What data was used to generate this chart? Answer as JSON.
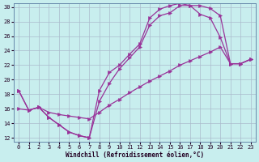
{
  "bg_color": "#c8eeee",
  "grid_color": "#aabbcc",
  "line_color": "#993399",
  "xlabel": "Windchill (Refroidissement éolien,°C)",
  "xlim": [
    -0.5,
    23.5
  ],
  "ylim": [
    11.5,
    30.5
  ],
  "xticks": [
    0,
    1,
    2,
    3,
    4,
    5,
    6,
    7,
    8,
    9,
    10,
    11,
    12,
    13,
    14,
    15,
    16,
    17,
    18,
    19,
    20,
    21,
    22,
    23
  ],
  "yticks": [
    12,
    14,
    16,
    18,
    20,
    22,
    24,
    26,
    28,
    30
  ],
  "curves": [
    {
      "x": [
        0,
        1,
        2,
        3,
        4,
        5,
        6,
        7,
        8,
        9,
        10,
        11,
        12,
        13,
        14,
        15,
        16,
        17,
        18,
        19,
        20,
        21,
        22,
        23
      ],
      "y": [
        18.5,
        15.8,
        16.2,
        14.8,
        13.8,
        12.8,
        12.3,
        12.0,
        18.5,
        21.0,
        22.0,
        23.5,
        24.9,
        28.5,
        29.7,
        30.2,
        30.5,
        30.2,
        29.0,
        28.5,
        25.8,
        22.2,
        22.2,
        22.8
      ]
    },
    {
      "x": [
        0,
        1,
        2,
        3,
        4,
        5,
        6,
        7,
        8,
        9,
        10,
        11,
        12,
        13,
        14,
        15,
        16,
        17,
        18,
        19,
        20,
        21,
        22,
        23
      ],
      "y": [
        18.5,
        15.8,
        16.2,
        14.8,
        13.8,
        12.8,
        12.3,
        12.0,
        17.0,
        19.5,
        21.5,
        23.0,
        24.5,
        27.5,
        28.8,
        29.2,
        30.2,
        30.2,
        30.2,
        29.8,
        28.8,
        22.2,
        22.2,
        22.8
      ]
    },
    {
      "x": [
        0,
        1,
        2,
        3,
        4,
        5,
        6,
        7,
        8,
        9,
        10,
        11,
        12,
        13,
        14,
        15,
        16,
        17,
        18,
        19,
        20,
        21,
        22,
        23
      ],
      "y": [
        16.0,
        15.8,
        16.2,
        15.5,
        15.2,
        15.0,
        14.8,
        14.6,
        15.5,
        16.5,
        17.3,
        18.2,
        19.0,
        19.8,
        20.5,
        21.2,
        22.0,
        22.6,
        23.2,
        23.8,
        24.5,
        22.2,
        22.2,
        22.8
      ]
    }
  ]
}
